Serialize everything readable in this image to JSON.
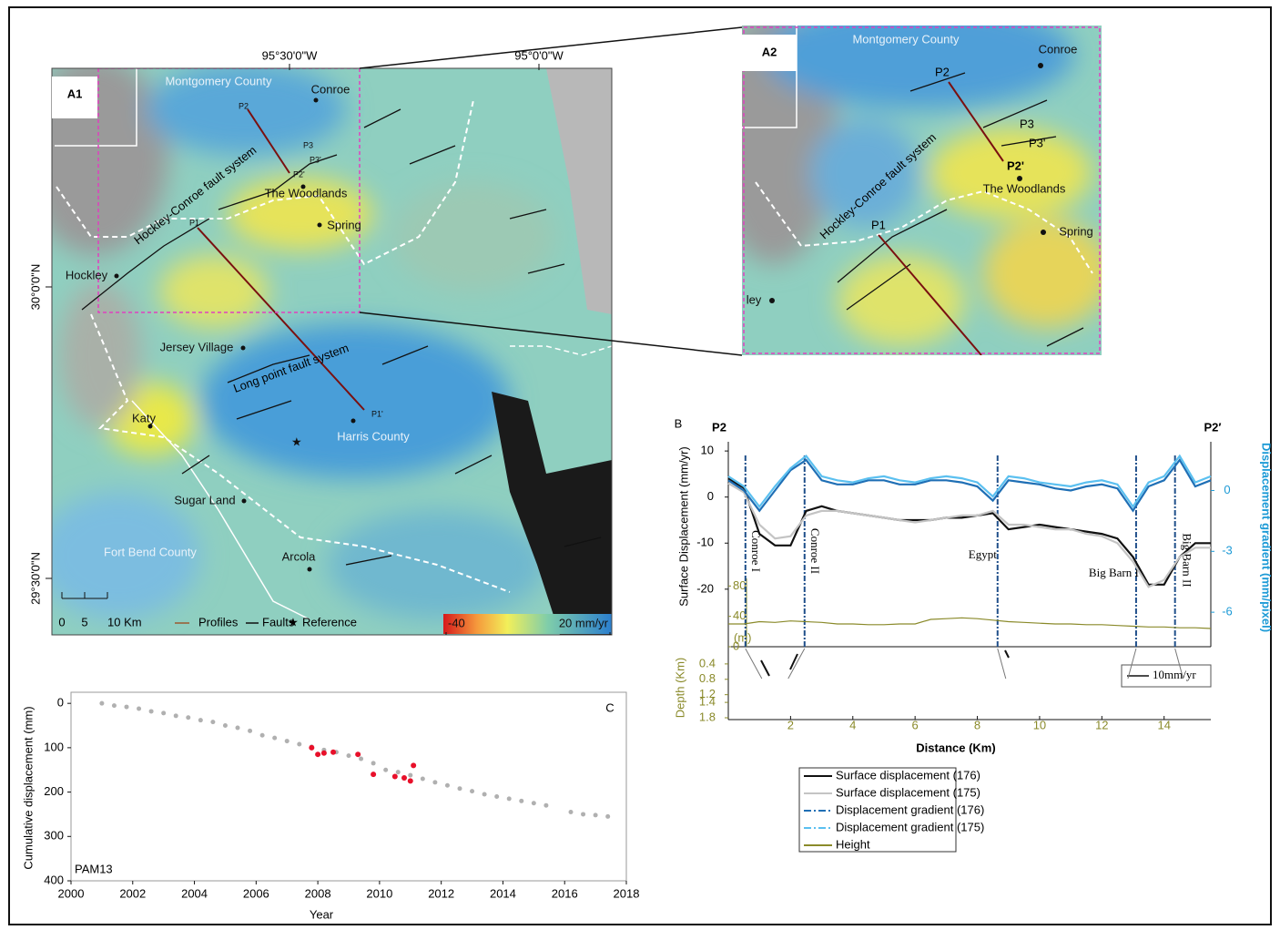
{
  "panel_a1": {
    "label": "A1",
    "lon_ticks": [
      "95°30'0\"W",
      "95°0'0\"W"
    ],
    "lat_ticks": [
      "30°0'0\"N",
      "29°30'0\"N"
    ],
    "places": [
      "Montgomery County",
      "Conroe",
      "The Woodlands",
      "Spring",
      "Hockley",
      "Jersey Village",
      "Katy",
      "Sugar Land",
      "Fort Bend County",
      "Arcola",
      "Harris County"
    ],
    "profile_points": [
      "P1",
      "P2",
      "P3",
      "P2'",
      "P3'",
      "P1'"
    ],
    "fault_systems": [
      "Hockley-Conroe fault system",
      "Long point fault system"
    ],
    "scale_bar": {
      "ticks": [
        0,
        5,
        {
          "value": 10,
          "label": "10 Km"
        }
      ]
    },
    "legend": [
      "Profiles",
      "Faults",
      "Reference"
    ],
    "colorbar": {
      "ticks": [
        -40,
        {
          "value": 20,
          "label": "20 mm/yr"
        }
      ]
    }
  },
  "panel_a2": {
    "label": "A2",
    "places": [
      "Montgomery County",
      "Conroe",
      "The Woodlands",
      "Spring",
      "ley"
    ],
    "profile_points": [
      "P1",
      "P2",
      "P3",
      "P2'",
      "P3'"
    ],
    "fault_systems": [
      "Hockley-Conroe fault system"
    ]
  },
  "chart_data": [
    {
      "type": "line",
      "panel_label": "B",
      "start_label": "P2",
      "end_label": "P2′",
      "x_label": "Distance (Km)",
      "y_label": "Surface Displacement (mm/yr)",
      "y2_label": "Displacement gradient (mm/pixel)",
      "x": [
        0,
        0.5,
        1,
        1.5,
        2,
        2.5,
        3,
        3.5,
        4,
        4.5,
        5,
        5.5,
        6,
        6.5,
        7,
        7.5,
        8,
        8.5,
        9,
        9.5,
        10,
        10.5,
        11,
        11.5,
        12,
        12.5,
        13,
        13.5,
        14,
        14.5,
        15,
        15.5
      ],
      "xlim": [
        0,
        15.5
      ],
      "xticks": [
        2,
        4,
        6,
        8,
        10,
        12,
        14
      ],
      "ylim": [
        -23,
        12
      ],
      "yticks": [
        -20,
        -10,
        0,
        10
      ],
      "y2lim": [
        -7.7,
        2.4
      ],
      "y2ticks": [
        -6,
        -3,
        0
      ],
      "height_axis": {
        "label": "(m)",
        "lim": [
          0,
          90
        ],
        "ticks": [
          0,
          40,
          80
        ]
      },
      "depth_axis": {
        "label": "Depth (Km)",
        "lim": [
          0,
          1.8
        ],
        "ticks": [
          0.4,
          0.8,
          1.2,
          1.4,
          1.8
        ]
      },
      "faults": {
        "x": [
          0.55,
          2.45,
          8.65,
          13.1,
          14.35
        ],
        "names": [
          "Conroe I",
          "Conroe II",
          "Egypt",
          "Big Barn I",
          "Big Barn II"
        ]
      },
      "scale_label": "10mm/yr",
      "series": [
        {
          "name": "Surface displacement (176)",
          "color": "#111111",
          "values": [
            4,
            2,
            -8,
            -10.5,
            -10.5,
            -3,
            -2,
            -3,
            -3.5,
            -4,
            -4.5,
            -5,
            -5,
            -5,
            -4.5,
            -4.5,
            -4,
            -3.5,
            -7,
            -6.5,
            -6,
            -6.5,
            -7,
            -7.5,
            -8,
            -9,
            -13,
            -19,
            -19,
            -13,
            -10,
            -10
          ]
        },
        {
          "name": "Surface displacement (175)",
          "color": "#c4c4c4",
          "values": [
            3,
            1,
            -6,
            -9,
            -8.5,
            -4,
            -3,
            -3,
            -3.5,
            -4,
            -4.5,
            -5,
            -5.5,
            -5,
            -4.5,
            -4,
            -4,
            -3,
            -6,
            -6,
            -6.5,
            -7,
            -7,
            -8,
            -8.5,
            -10,
            -14,
            -19.5,
            -18,
            -13,
            -11,
            -11
          ]
        },
        {
          "name": "Displacement gradient (176)",
          "color": "#1f6fb5",
          "axis": "y2",
          "values": [
            0.5,
            0,
            -1,
            0,
            1,
            1.5,
            0.5,
            0.3,
            0.3,
            0.5,
            0.5,
            0.3,
            0.3,
            0.5,
            0.5,
            0.4,
            0.2,
            -0.5,
            0.5,
            0.4,
            0.3,
            0.1,
            0,
            0.2,
            0.3,
            0.1,
            -1,
            0.2,
            0.5,
            1.5,
            0.2,
            0.5
          ]
        },
        {
          "name": "Displacement gradient (175)",
          "color": "#5bc0f0",
          "axis": "y2",
          "values": [
            0.7,
            0.2,
            -0.8,
            0.2,
            1.1,
            1.7,
            0.7,
            0.5,
            0.4,
            0.6,
            0.7,
            0.5,
            0.4,
            0.6,
            0.7,
            0.6,
            0.4,
            -0.3,
            0.7,
            0.6,
            0.4,
            0.3,
            0.2,
            0.4,
            0.5,
            0.3,
            -0.8,
            0.4,
            0.7,
            1.7,
            0.4,
            0.7
          ]
        },
        {
          "name": "Height",
          "color": "#8a8a2a",
          "axis": "height",
          "values": [
            30,
            30,
            33,
            32,
            34,
            33,
            32,
            30,
            30,
            29,
            29,
            30,
            30,
            36,
            37,
            38,
            37,
            35,
            33,
            32,
            31,
            30,
            30,
            29,
            29,
            28,
            27,
            26,
            26,
            25,
            25,
            24
          ]
        }
      ]
    },
    {
      "type": "scatter",
      "panel_label": "C",
      "annotation": "PAM13",
      "x_label": "Year",
      "y_label": "Cumulative displacement (mm)",
      "xlim": [
        2000,
        2018
      ],
      "xticks": [
        2000,
        2002,
        2004,
        2006,
        2008,
        2010,
        2012,
        2014,
        2016,
        2018
      ],
      "ylim": [
        400,
        -25
      ],
      "yticks": [
        0,
        100,
        200,
        300,
        400
      ],
      "series": [
        {
          "color": "#b0b0b0",
          "x": [
            2001,
            2001.4,
            2001.8,
            2002.2,
            2002.6,
            2003,
            2003.4,
            2003.8,
            2004.2,
            2004.6,
            2005,
            2005.4,
            2005.8,
            2006.2,
            2006.6,
            2007,
            2007.4,
            2007.8,
            2008.2,
            2008.6,
            2009,
            2009.4,
            2009.8,
            2010.2,
            2010.6,
            2011,
            2011.4,
            2011.8,
            2012.2,
            2012.6,
            2013,
            2013.4,
            2013.8,
            2014.2,
            2014.6,
            2015,
            2015.4,
            2016.2,
            2016.6,
            2017,
            2017.4
          ],
          "values": [
            0,
            5,
            8,
            12,
            18,
            22,
            28,
            32,
            38,
            42,
            50,
            55,
            62,
            72,
            78,
            85,
            92,
            98,
            105,
            110,
            118,
            125,
            135,
            150,
            155,
            162,
            170,
            178,
            185,
            192,
            198,
            205,
            210,
            215,
            220,
            225,
            230,
            245,
            250,
            252,
            255
          ]
        },
        {
          "color": "#e8102a",
          "x": [
            2007.8,
            2008,
            2008.2,
            2008.5,
            2009.3,
            2009.8,
            2010.5,
            2010.8,
            2011,
            2011.1
          ],
          "values": [
            100,
            115,
            112,
            110,
            115,
            160,
            165,
            168,
            175,
            140
          ]
        }
      ]
    }
  ]
}
